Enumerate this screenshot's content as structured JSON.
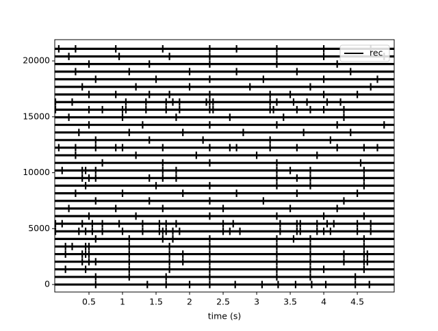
{
  "chart_data": {
    "type": "raster",
    "x_label": "time (s)",
    "xlim": [
      -0.01,
      5.05
    ],
    "ylim": [
      -670,
      21900
    ],
    "xticks": [
      0.5,
      1.0,
      1.5,
      2.0,
      2.5,
      3.0,
      3.5,
      4.0,
      4.5
    ],
    "yticks": [
      0,
      5000,
      10000,
      15000,
      20000
    ],
    "legend": "upper right",
    "series": [
      {
        "name": "rec",
        "color": "#000000",
        "spike_amplitude": 330,
        "offsets": [
          0,
          680,
          1360,
          2040,
          2720,
          3400,
          4080,
          4760,
          5440,
          6120,
          6800,
          7480,
          8160,
          8840,
          9520,
          10200,
          10880,
          11560,
          12240,
          12920,
          13600,
          14280,
          14960,
          15640,
          16320,
          17000,
          17680,
          18360,
          19040,
          19720,
          20400,
          21080
        ],
        "spike_times": [
          [
            0.6,
            1.37,
            1.65,
            2.0,
            2.3,
            2.68,
            3.08,
            3.32,
            3.58,
            3.82,
            4.03,
            4.47,
            4.68
          ],
          [
            0.6,
            1.1,
            1.65,
            2.3,
            3.3,
            3.8,
            4.47
          ],
          [
            0.15,
            0.45,
            1.1,
            1.7,
            2.3,
            3.3,
            3.8,
            4.0,
            4.6
          ],
          [
            0.4,
            0.5,
            0.6,
            1.1,
            1.7,
            1.9,
            2.3,
            3.3,
            3.8,
            4.3,
            4.6,
            4.65
          ],
          [
            0.15,
            0.4,
            0.45,
            0.5,
            1.1,
            1.7,
            1.9,
            2.3,
            3.3,
            3.8,
            4.3,
            4.6,
            4.65
          ],
          [
            0.15,
            0.25,
            0.45,
            0.5,
            1.1,
            1.7,
            2.3,
            3.3,
            3.8,
            4.6
          ],
          [
            0.6,
            1.1,
            1.6,
            1.75,
            2.3,
            3.3,
            3.55,
            3.8,
            4.6
          ],
          [
            0.0,
            0.35,
            0.45,
            0.55,
            0.7,
            1.0,
            1.3,
            1.55,
            1.6,
            1.65,
            1.75,
            1.85,
            2.5,
            2.6,
            2.75,
            3.35,
            3.6,
            3.65,
            3.9,
            4.0,
            4.1,
            4.5,
            4.7
          ],
          [
            0.0,
            0.1,
            0.4,
            0.55,
            0.7,
            0.95,
            1.3,
            1.55,
            1.65,
            1.8,
            2.5,
            2.65,
            3.35,
            3.6,
            3.65,
            3.9,
            4.05,
            4.15,
            4.5,
            4.7
          ],
          [
            0.5,
            1.2,
            2.3,
            3.3,
            4.0,
            4.6
          ],
          [
            0.2,
            0.9,
            1.6,
            2.5,
            3.5,
            4.2
          ],
          [
            0.6,
            1.4,
            2.3,
            3.1,
            4.3
          ],
          [
            0.3,
            1.0,
            1.9,
            2.7,
            3.6,
            4.5
          ],
          [
            0.45,
            1.5,
            2.3,
            3.3,
            3.8,
            4.6
          ],
          [
            0.4,
            0.5,
            0.6,
            1.4,
            1.6,
            1.8,
            3.3,
            3.6,
            3.8,
            4.6
          ],
          [
            0.1,
            0.4,
            0.45,
            0.6,
            1.6,
            1.8,
            3.3,
            3.5,
            3.8,
            4.6
          ],
          [
            0.7,
            1.6,
            2.3,
            3.3,
            4.55
          ],
          [
            0.3,
            1.2,
            2.1,
            3.0,
            3.9
          ],
          [
            0.05,
            0.3,
            0.6,
            0.9,
            1.0,
            1.6,
            2.3,
            2.6,
            2.7,
            3.2,
            3.6,
            4.2,
            4.6,
            4.8
          ],
          [
            0.6,
            1.4,
            2.2,
            3.2,
            4.1
          ],
          [
            0.35,
            1.1,
            1.9,
            2.8,
            3.7,
            4.4
          ],
          [
            0.5,
            1.3,
            2.3,
            3.3,
            4.2,
            4.9
          ],
          [
            0.2,
            1.0,
            1.8,
            2.6,
            3.4,
            4.3
          ],
          [
            0.0,
            0.5,
            0.7,
            1.0,
            1.05,
            1.35,
            1.65,
            1.85,
            2.3,
            2.35,
            3.2,
            3.25,
            3.6,
            3.8,
            4.0,
            4.3
          ],
          [
            0.0,
            0.25,
            1.05,
            1.35,
            1.65,
            1.75,
            1.85,
            2.25,
            2.3,
            2.35,
            3.2,
            3.3,
            3.55,
            3.75,
            4.05,
            4.25
          ],
          [
            0.5,
            0.9,
            1.4,
            1.7,
            2.3,
            3.2,
            3.5,
            4.0,
            4.5
          ],
          [
            0.4,
            1.2,
            2.0,
            2.9,
            3.8,
            4.7
          ],
          [
            0.6,
            1.5,
            2.3,
            3.1,
            4.0,
            4.8
          ],
          [
            0.3,
            1.1,
            2.0,
            2.7,
            3.6,
            4.4
          ],
          [
            0.5,
            1.4,
            2.3,
            3.3,
            4.2
          ],
          [
            0.2,
            0.95,
            1.7,
            2.3,
            3.3,
            4.0,
            4.9
          ],
          [
            0.05,
            0.3,
            0.9,
            1.6,
            2.3,
            2.7,
            3.3,
            4.0,
            4.7
          ]
        ]
      }
    ]
  }
}
